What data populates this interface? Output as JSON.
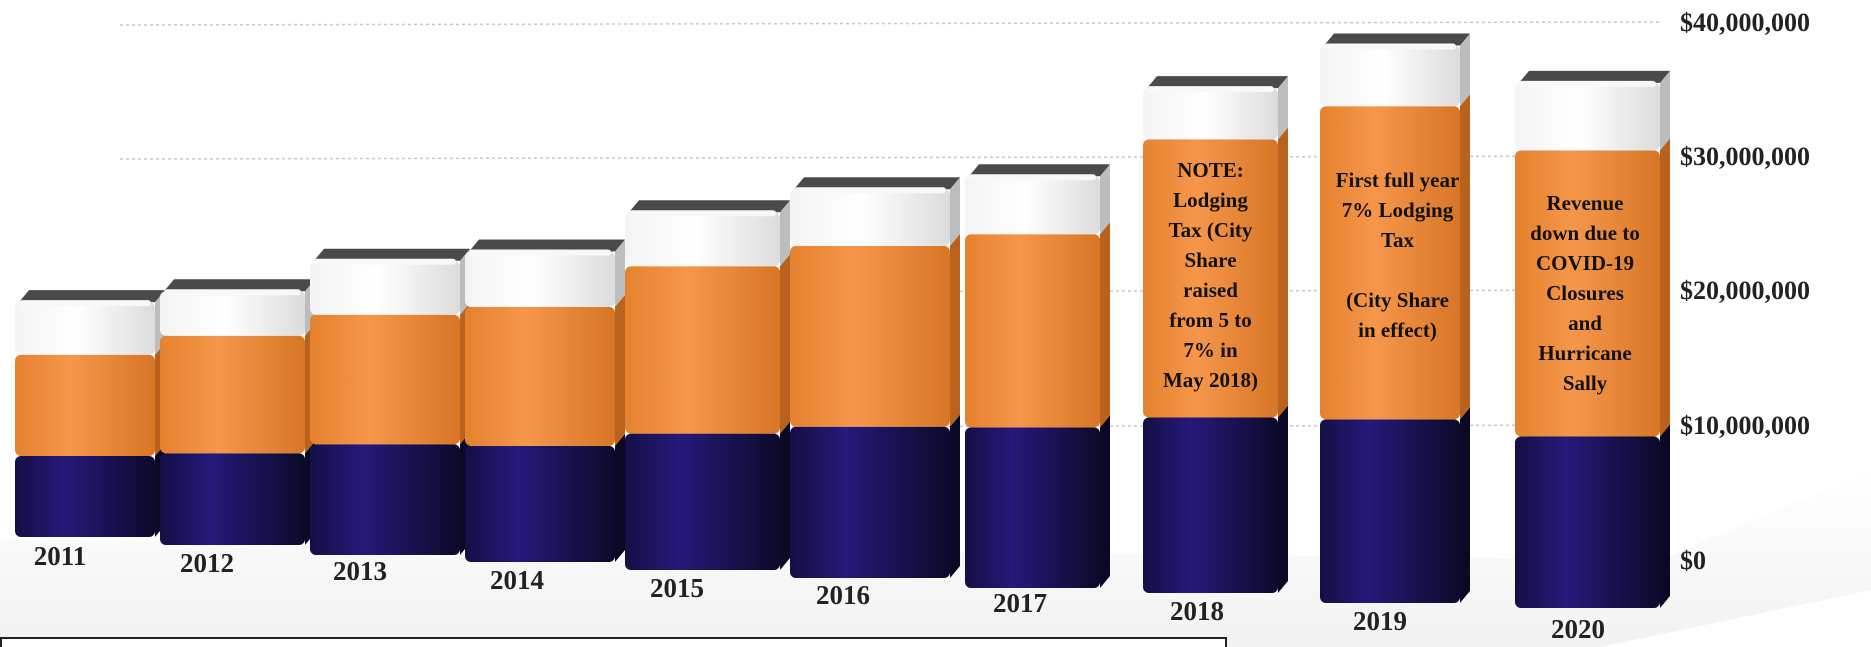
{
  "chart_data": {
    "type": "bar",
    "stacked": true,
    "categories": [
      "2011",
      "2012",
      "2013",
      "2014",
      "2015",
      "2016",
      "2017",
      "2018",
      "2019",
      "2020"
    ],
    "series": [
      {
        "values": [
          6000000,
          6800000,
          8200000,
          8600000,
          10100000,
          11200000,
          11900000,
          13000000,
          13600000,
          12700000
        ]
      },
      {
        "values": [
          7500000,
          8700000,
          9600000,
          10300000,
          12400000,
          13400000,
          14300000,
          20600000,
          23200000,
          21200000
        ]
      },
      {
        "values": [
          3900000,
          3300000,
          4000000,
          4100000,
          4000000,
          4200000,
          4300000,
          3800000,
          4500000,
          5000000
        ]
      }
    ],
    "colors": [
      "#1c1464",
      "#f28e3e",
      "#ffffff"
    ],
    "ylim": [
      0,
      40000000
    ],
    "yticks": [
      "$0",
      "$10,000,000",
      "$20,000,000",
      "$30,000,000",
      "$40,000,000"
    ],
    "grid": true,
    "annotations": [
      {
        "category": "2018",
        "text": "NOTE:\nLodging\nTax (City\nShare\nraised\nfrom 5 to\n7% in\nMay 2018)"
      },
      {
        "category": "2019",
        "text": "First full year\n7% Lodging\nTax\n\n(City Share\nin effect)"
      },
      {
        "category": "2020",
        "text": "Revenue\ndown due to\nCOVID-19\nClosures\nand\nHurricane\nSally"
      }
    ]
  }
}
